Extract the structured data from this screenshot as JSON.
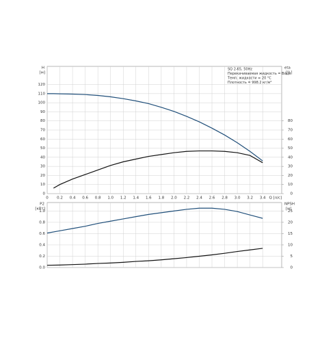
{
  "chart_data": [
    {
      "type": "line",
      "x_label": "Q [л/с]",
      "y_label_top": "H",
      "y_label_unit": "[м]",
      "y2_label_top": "eta",
      "y2_label_unit": "[%]",
      "annotations": [
        "SQ 2-65, 50Hz",
        "Перекачиваемая жидкость = Вода",
        "Темп. жидкости = 20 °C",
        "Плотность = 998.2 кг/м³"
      ],
      "x": [
        0,
        0.1,
        0.2,
        0.4,
        0.6,
        0.8,
        1.0,
        1.2,
        1.4,
        1.6,
        1.8,
        2.0,
        2.2,
        2.4,
        2.6,
        2.8,
        3.0,
        3.2,
        3.4
      ],
      "series": [
        {
          "name": "H",
          "color": "#1f4e79",
          "values": [
            110,
            110,
            109.8,
            109.5,
            109,
            108,
            106.5,
            104.5,
            102,
            99,
            95,
            90.5,
            85,
            79,
            72,
            64.5,
            56,
            46.5,
            36
          ]
        },
        {
          "name": "eta",
          "color": "#111111",
          "axis": "y2",
          "values": [
            null,
            6,
            10,
            16,
            21,
            26,
            31,
            35,
            38,
            41,
            43,
            45,
            46.5,
            47,
            47,
            46.5,
            45,
            42,
            34
          ]
        }
      ],
      "xlim": [
        0,
        3.7
      ],
      "xticks": [
        0,
        0.2,
        0.4,
        0.6,
        0.8,
        {
          "value": 1,
          "label": "1.0"
        },
        1.2,
        1.4,
        1.6,
        1.8,
        {
          "value": 2,
          "label": "2.0"
        },
        2.2,
        2.4,
        2.6,
        2.8,
        {
          "value": 3,
          "label": "3.0"
        },
        3.2,
        3.4
      ],
      "ylim": [
        0,
        140
      ],
      "yticks": [
        0,
        10,
        20,
        30,
        40,
        50,
        60,
        70,
        80,
        90,
        100,
        110,
        120
      ],
      "y2lim": [
        0,
        140
      ],
      "y2ticks": [
        0,
        10,
        20,
        30,
        40,
        50,
        60,
        70,
        80
      ],
      "grid": true
    },
    {
      "type": "line",
      "y_label_top": "P2",
      "y_label_unit": "[кВт]",
      "y2_label_top": "NPSH",
      "y2_label_unit": "[м]",
      "x": [
        0,
        0.2,
        0.4,
        0.6,
        0.8,
        1.0,
        1.2,
        1.4,
        1.6,
        1.8,
        2.0,
        2.2,
        2.4,
        2.6,
        2.8,
        3.0,
        3.2,
        3.4
      ],
      "series": [
        {
          "name": "P2",
          "color": "#1f4e79",
          "values": [
            0.61,
            0.65,
            0.69,
            0.73,
            0.78,
            0.82,
            0.86,
            0.9,
            0.94,
            0.97,
            1.0,
            1.03,
            1.05,
            1.05,
            1.03,
            0.99,
            0.93,
            0.87
          ]
        },
        {
          "name": "NPSH",
          "color": "#111111",
          "axis": "y2",
          "values": [
            1.0,
            1.1,
            1.3,
            1.5,
            1.8,
            2.0,
            2.3,
            2.7,
            3.0,
            3.4,
            3.9,
            4.4,
            5.0,
            5.6,
            6.3,
            7.1,
            7.8,
            8.5
          ]
        }
      ],
      "xlim": [
        0,
        3.7
      ],
      "ylim": [
        0,
        1.15
      ],
      "yticks": [
        {
          "value": 0,
          "label": "0.0"
        },
        0.2,
        0.4,
        0.6,
        0.8,
        {
          "value": 1,
          "label": "1.0"
        }
      ],
      "y2lim": [
        0,
        28.75
      ],
      "y2ticks": [
        0,
        5,
        10,
        15,
        20,
        25
      ],
      "grid": true
    }
  ]
}
